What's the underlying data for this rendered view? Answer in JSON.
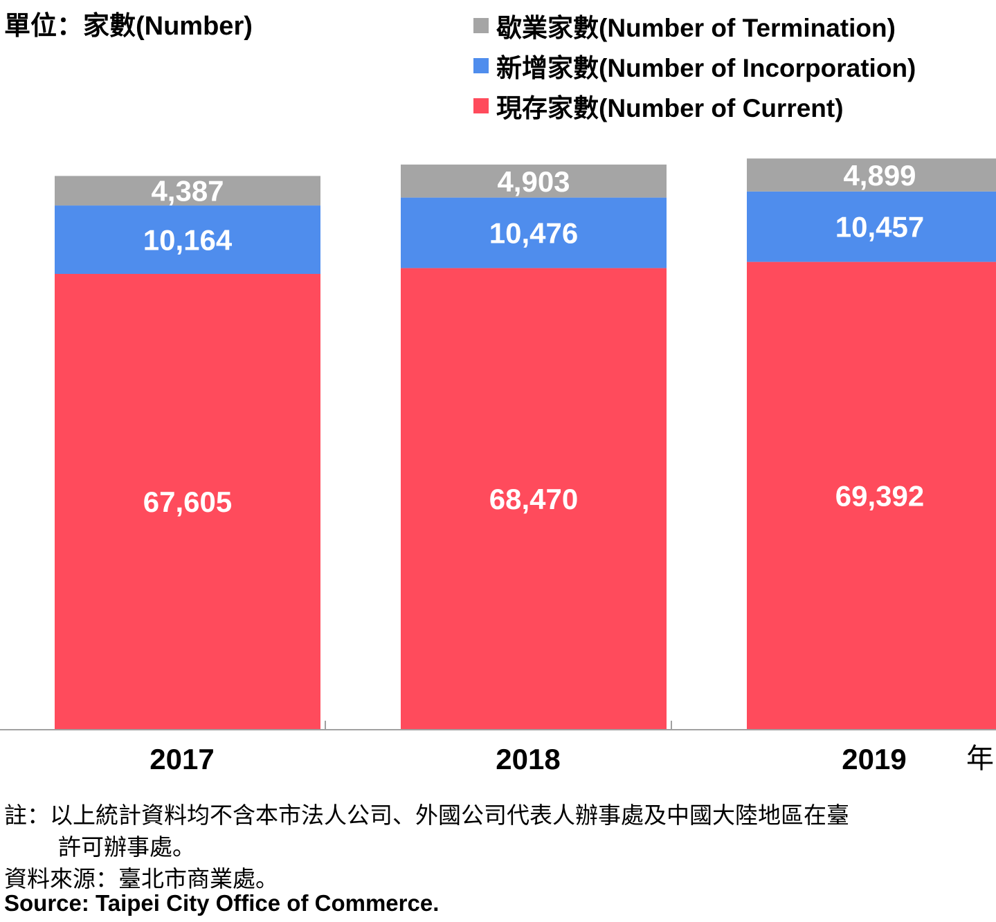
{
  "chart_data": {
    "type": "bar",
    "stacked": true,
    "unit_label": "單位：家數(Number)",
    "x_unit": "年",
    "categories": [
      "2017",
      "2018",
      "2019"
    ],
    "series": [
      {
        "name": "現存家數(Number of Current)",
        "color": "#ff4b5c",
        "values": [
          67605,
          68470,
          69392
        ],
        "labels": [
          "67,605",
          "68,470",
          "69,392"
        ]
      },
      {
        "name": "新增家數(Number of Incorporation)",
        "color": "#4f8ded",
        "values": [
          10164,
          10476,
          10457
        ],
        "labels": [
          "10,164",
          "10,476",
          "10,457"
        ]
      },
      {
        "name": "歇業家數(Number of Termination)",
        "color": "#a5a5a5",
        "values": [
          4387,
          4903,
          4899
        ],
        "labels": [
          "4,387",
          "4,903",
          "4,899"
        ]
      }
    ],
    "legend_order": [
      2,
      1,
      0
    ],
    "legend_position": "top-right",
    "grid": false
  },
  "notes": {
    "note_line1": "註：以上統計資料均不含本市法人公司、外國公司代表人辦事處及中國大陸地區在臺",
    "note_line2": "許可辦事處。",
    "source_zh": "資料來源：臺北市商業處。",
    "source_en": "Source: Taipei City Office of Commerce."
  }
}
